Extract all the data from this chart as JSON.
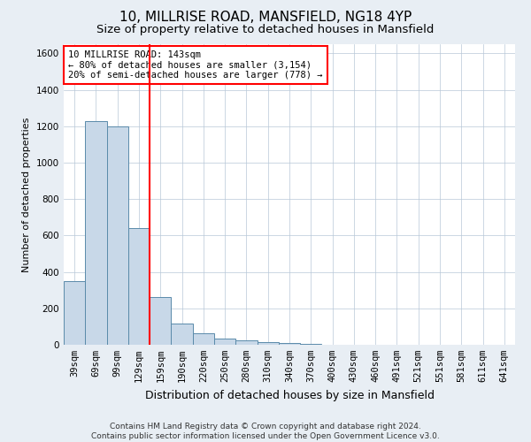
{
  "title1": "10, MILLRISE ROAD, MANSFIELD, NG18 4YP",
  "title2": "Size of property relative to detached houses in Mansfield",
  "xlabel": "Distribution of detached houses by size in Mansfield",
  "ylabel": "Number of detached properties",
  "footer": "Contains HM Land Registry data © Crown copyright and database right 2024.\nContains public sector information licensed under the Open Government Licence v3.0.",
  "categories": [
    "39sqm",
    "69sqm",
    "99sqm",
    "129sqm",
    "159sqm",
    "190sqm",
    "220sqm",
    "250sqm",
    "280sqm",
    "310sqm",
    "340sqm",
    "370sqm",
    "400sqm",
    "430sqm",
    "460sqm",
    "491sqm",
    "521sqm",
    "551sqm",
    "581sqm",
    "611sqm",
    "641sqm"
  ],
  "values": [
    350,
    1230,
    1200,
    640,
    260,
    115,
    65,
    35,
    25,
    15,
    10,
    5,
    0,
    0,
    0,
    0,
    0,
    0,
    0,
    0,
    0
  ],
  "bar_color": "#c8d8e8",
  "bar_edge_color": "#5a8aaa",
  "vline_color": "red",
  "annotation_text": "10 MILLRISE ROAD: 143sqm\n← 80% of detached houses are smaller (3,154)\n20% of semi-detached houses are larger (778) →",
  "annotation_box_color": "white",
  "annotation_box_edge": "red",
  "ylim": [
    0,
    1650
  ],
  "yticks": [
    0,
    200,
    400,
    600,
    800,
    1000,
    1200,
    1400,
    1600
  ],
  "background_color": "#e8eef4",
  "plot_bg_color": "white",
  "grid_color": "#b8c8d8",
  "title1_fontsize": 11,
  "title2_fontsize": 9.5,
  "xlabel_fontsize": 9,
  "ylabel_fontsize": 8,
  "tick_fontsize": 7.5,
  "annotation_fontsize": 7.5,
  "footer_fontsize": 6.5
}
